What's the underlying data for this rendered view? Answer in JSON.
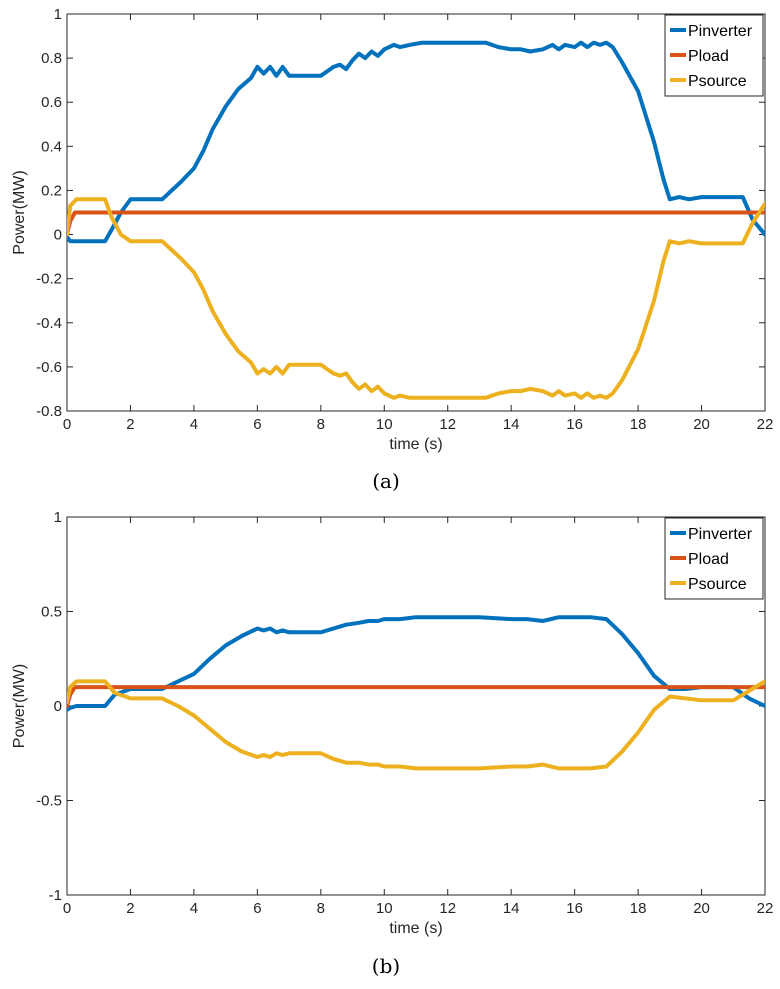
{
  "chart_data": [
    {
      "type": "line",
      "caption": "(a)",
      "xlabel": "time (s)",
      "ylabel": "Power(MW)",
      "xlim": [
        0,
        22
      ],
      "ylim": [
        -0.8,
        1
      ],
      "xticks": [
        0,
        2,
        4,
        6,
        8,
        10,
        12,
        14,
        16,
        18,
        20,
        22
      ],
      "yticks": [
        -0.8,
        -0.6,
        -0.4,
        -0.2,
        0,
        0.2,
        0.4,
        0.6,
        0.8,
        1
      ],
      "ytick_labels": [
        "-0.8",
        "-0.6",
        "-0.4",
        "-0.2",
        "0",
        "0.2",
        "0.4",
        "0.6",
        "0.8",
        "1"
      ],
      "legend_position": "top-right",
      "grid": false,
      "series": [
        {
          "name": "Pinverter",
          "color": "#0072BD",
          "x": [
            0,
            0.1,
            0.3,
            1.2,
            1.4,
            1.7,
            2.0,
            3.0,
            3.3,
            3.6,
            4.0,
            4.3,
            4.6,
            5.0,
            5.4,
            5.8,
            6.0,
            6.2,
            6.4,
            6.6,
            6.8,
            7.0,
            7.2,
            7.5,
            8.0,
            8.4,
            8.6,
            8.8,
            9.0,
            9.2,
            9.4,
            9.6,
            9.8,
            10.0,
            10.3,
            10.5,
            10.8,
            11.2,
            11.6,
            12.0,
            12.4,
            12.8,
            13.2,
            13.6,
            14.0,
            14.3,
            14.6,
            15.0,
            15.3,
            15.5,
            15.7,
            16.0,
            16.2,
            16.4,
            16.6,
            16.8,
            17.0,
            17.2,
            17.5,
            18.0,
            18.5,
            18.8,
            19.0,
            19.3,
            19.6,
            20.0,
            20.5,
            21.0,
            21.3,
            21.6,
            22.0
          ],
          "y": [
            -0.01,
            -0.03,
            -0.03,
            -0.03,
            0.02,
            0.1,
            0.16,
            0.16,
            0.2,
            0.24,
            0.3,
            0.38,
            0.48,
            0.58,
            0.66,
            0.71,
            0.76,
            0.73,
            0.76,
            0.72,
            0.76,
            0.72,
            0.72,
            0.72,
            0.72,
            0.76,
            0.77,
            0.75,
            0.79,
            0.82,
            0.8,
            0.83,
            0.81,
            0.84,
            0.86,
            0.85,
            0.86,
            0.87,
            0.87,
            0.87,
            0.87,
            0.87,
            0.87,
            0.85,
            0.84,
            0.84,
            0.83,
            0.84,
            0.86,
            0.84,
            0.86,
            0.85,
            0.87,
            0.85,
            0.87,
            0.86,
            0.87,
            0.85,
            0.78,
            0.65,
            0.42,
            0.25,
            0.16,
            0.17,
            0.16,
            0.17,
            0.17,
            0.17,
            0.17,
            0.07,
            0.0
          ]
        },
        {
          "name": "Pload",
          "color": "#D95319",
          "x": [
            0,
            0.1,
            0.25,
            22
          ],
          "y": [
            0,
            0.06,
            0.1,
            0.1
          ]
        },
        {
          "name": "Psource",
          "color": "#EDB120",
          "x": [
            0,
            0.1,
            0.3,
            1.2,
            1.4,
            1.7,
            2.0,
            3.0,
            3.3,
            3.6,
            4.0,
            4.3,
            4.6,
            5.0,
            5.4,
            5.8,
            6.0,
            6.2,
            6.4,
            6.6,
            6.8,
            7.0,
            7.2,
            7.5,
            8.0,
            8.4,
            8.6,
            8.8,
            9.0,
            9.2,
            9.4,
            9.6,
            9.8,
            10.0,
            10.3,
            10.5,
            10.8,
            11.2,
            11.6,
            12.0,
            12.4,
            12.8,
            13.2,
            13.6,
            14.0,
            14.3,
            14.6,
            15.0,
            15.3,
            15.5,
            15.7,
            16.0,
            16.2,
            16.4,
            16.6,
            16.8,
            17.0,
            17.2,
            17.5,
            18.0,
            18.5,
            18.8,
            19.0,
            19.3,
            19.6,
            20.0,
            20.5,
            21.0,
            21.3,
            21.6,
            22.0
          ],
          "y": [
            0.0,
            0.13,
            0.16,
            0.16,
            0.08,
            0.0,
            -0.03,
            -0.03,
            -0.07,
            -0.11,
            -0.17,
            -0.25,
            -0.35,
            -0.45,
            -0.53,
            -0.58,
            -0.63,
            -0.61,
            -0.63,
            -0.6,
            -0.63,
            -0.59,
            -0.59,
            -0.59,
            -0.59,
            -0.63,
            -0.64,
            -0.63,
            -0.67,
            -0.7,
            -0.68,
            -0.71,
            -0.69,
            -0.72,
            -0.74,
            -0.73,
            -0.74,
            -0.74,
            -0.74,
            -0.74,
            -0.74,
            -0.74,
            -0.74,
            -0.72,
            -0.71,
            -0.71,
            -0.7,
            -0.71,
            -0.73,
            -0.71,
            -0.73,
            -0.72,
            -0.74,
            -0.72,
            -0.74,
            -0.73,
            -0.74,
            -0.72,
            -0.66,
            -0.52,
            -0.3,
            -0.12,
            -0.03,
            -0.04,
            -0.03,
            -0.04,
            -0.04,
            -0.04,
            -0.04,
            0.05,
            0.14
          ]
        }
      ]
    },
    {
      "type": "line",
      "caption": "(b)",
      "xlabel": "time (s)",
      "ylabel": "Power(MW)",
      "xlim": [
        0,
        22
      ],
      "ylim": [
        -1,
        1
      ],
      "xticks": [
        0,
        2,
        4,
        6,
        8,
        10,
        12,
        14,
        16,
        18,
        20,
        22
      ],
      "yticks": [
        -1,
        -0.5,
        0,
        0.5,
        1
      ],
      "ytick_labels": [
        "-1",
        "-0.5",
        "0",
        "0.5",
        "1"
      ],
      "legend_position": "top-right",
      "grid": false,
      "series": [
        {
          "name": "Pinverter",
          "color": "#0072BD",
          "x": [
            0,
            0.1,
            0.3,
            1.2,
            1.5,
            2.0,
            3.0,
            3.5,
            4.0,
            4.5,
            5.0,
            5.5,
            6.0,
            6.2,
            6.4,
            6.6,
            6.8,
            7.0,
            7.5,
            8.0,
            8.4,
            8.8,
            9.2,
            9.5,
            9.8,
            10.0,
            10.5,
            11.0,
            11.5,
            12.0,
            13.0,
            14.0,
            14.5,
            15.0,
            15.5,
            16.0,
            16.5,
            17.0,
            17.5,
            18.0,
            18.5,
            19.0,
            19.5,
            20.0,
            20.5,
            21.0,
            21.5,
            22.0
          ],
          "y": [
            -0.02,
            -0.01,
            0.0,
            0.0,
            0.06,
            0.09,
            0.09,
            0.13,
            0.17,
            0.25,
            0.32,
            0.37,
            0.41,
            0.4,
            0.41,
            0.39,
            0.4,
            0.39,
            0.39,
            0.39,
            0.41,
            0.43,
            0.44,
            0.45,
            0.45,
            0.46,
            0.46,
            0.47,
            0.47,
            0.47,
            0.47,
            0.46,
            0.46,
            0.45,
            0.47,
            0.47,
            0.47,
            0.46,
            0.38,
            0.28,
            0.16,
            0.09,
            0.09,
            0.1,
            0.1,
            0.1,
            0.04,
            0.0
          ]
        },
        {
          "name": "Pload",
          "color": "#D95319",
          "x": [
            0,
            0.1,
            0.25,
            22
          ],
          "y": [
            0,
            0.06,
            0.1,
            0.1
          ]
        },
        {
          "name": "Psource",
          "color": "#EDB120",
          "x": [
            0,
            0.1,
            0.3,
            1.2,
            1.5,
            2.0,
            3.0,
            3.5,
            4.0,
            4.5,
            5.0,
            5.5,
            6.0,
            6.2,
            6.4,
            6.6,
            6.8,
            7.0,
            7.5,
            8.0,
            8.4,
            8.8,
            9.2,
            9.5,
            9.8,
            10.0,
            10.5,
            11.0,
            11.5,
            12.0,
            13.0,
            14.0,
            14.5,
            15.0,
            15.5,
            16.0,
            16.5,
            17.0,
            17.5,
            18.0,
            18.5,
            19.0,
            19.5,
            20.0,
            20.5,
            21.0,
            21.5,
            22.0
          ],
          "y": [
            0.02,
            0.1,
            0.13,
            0.13,
            0.07,
            0.04,
            0.04,
            0.0,
            -0.05,
            -0.12,
            -0.19,
            -0.24,
            -0.27,
            -0.26,
            -0.27,
            -0.25,
            -0.26,
            -0.25,
            -0.25,
            -0.25,
            -0.28,
            -0.3,
            -0.3,
            -0.31,
            -0.31,
            -0.32,
            -0.32,
            -0.33,
            -0.33,
            -0.33,
            -0.33,
            -0.32,
            -0.32,
            -0.31,
            -0.33,
            -0.33,
            -0.33,
            -0.32,
            -0.24,
            -0.14,
            -0.02,
            0.05,
            0.04,
            0.03,
            0.03,
            0.03,
            0.08,
            0.13
          ]
        }
      ]
    }
  ]
}
